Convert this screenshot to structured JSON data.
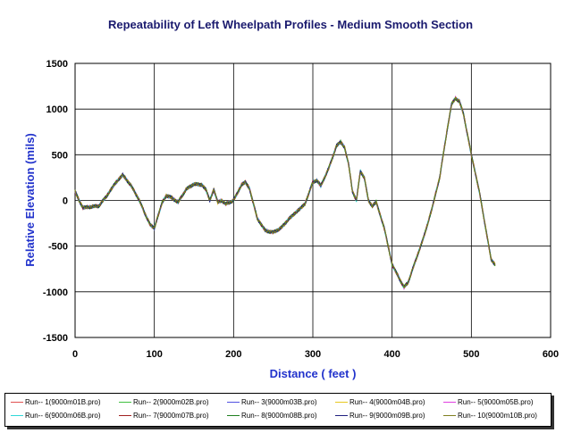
{
  "chart_data": {
    "type": "line",
    "title": "Repeatability of Left Wheelpath Profiles - Medium Smooth Section",
    "xlabel": "Distance ( feet )",
    "ylabel": "Relative Elevation (mils)",
    "xlim": [
      0,
      600
    ],
    "ylim": [
      -1500,
      1500
    ],
    "xticks": [
      0,
      100,
      200,
      300,
      400,
      500,
      600
    ],
    "yticks": [
      -1500,
      -1000,
      -500,
      0,
      500,
      1000,
      1500
    ],
    "grid": true,
    "legend_position": "bottom",
    "profile_x": [
      0,
      5,
      10,
      20,
      30,
      40,
      50,
      60,
      70,
      80,
      90,
      95,
      100,
      110,
      115,
      120,
      130,
      140,
      150,
      160,
      165,
      170,
      175,
      180,
      185,
      190,
      200,
      210,
      215,
      220,
      230,
      240,
      250,
      260,
      270,
      280,
      290,
      300,
      305,
      310,
      320,
      330,
      335,
      340,
      345,
      350,
      355,
      360,
      365,
      370,
      375,
      380,
      390,
      400,
      410,
      415,
      420,
      430,
      440,
      450,
      460,
      470,
      475,
      480,
      485,
      490,
      500,
      510,
      520,
      525,
      530
    ],
    "profile_y": [
      100,
      0,
      -80,
      -70,
      -60,
      50,
      180,
      280,
      170,
      20,
      -180,
      -270,
      -300,
      -20,
      50,
      40,
      -20,
      120,
      180,
      170,
      120,
      0,
      120,
      -20,
      0,
      -40,
      0,
      170,
      200,
      130,
      -200,
      -330,
      -350,
      -300,
      -200,
      -120,
      -40,
      200,
      220,
      160,
      350,
      600,
      640,
      580,
      400,
      100,
      0,
      320,
      250,
      0,
      -60,
      -20,
      -300,
      -700,
      -870,
      -950,
      -900,
      -650,
      -400,
      -100,
      250,
      800,
      1050,
      1120,
      1080,
      950,
      500,
      100,
      -400,
      -650,
      -700
    ],
    "series": [
      {
        "name": "Run-- 1(9000m01B.pro)",
        "color": "#e05050"
      },
      {
        "name": "Run-- 2(9000m02B.pro)",
        "color": "#40c040"
      },
      {
        "name": "Run-- 3(9000m03B.pro)",
        "color": "#5050e0"
      },
      {
        "name": "Run-- 4(9000m04B.pro)",
        "color": "#e8c820"
      },
      {
        "name": "Run-- 5(9000m05B.pro)",
        "color": "#e040e0"
      },
      {
        "name": "Run-- 6(9000m06B.pro)",
        "color": "#30d8d8"
      },
      {
        "name": "Run-- 7(9000m07B.pro)",
        "color": "#a02020"
      },
      {
        "name": "Run-- 8(9000m08B.pro)",
        "color": "#208020"
      },
      {
        "name": "Run-- 9(9000m09B.pro)",
        "color": "#202080"
      },
      {
        "name": "Run-- 10(9000m10B.pro)",
        "color": "#808020"
      }
    ]
  }
}
